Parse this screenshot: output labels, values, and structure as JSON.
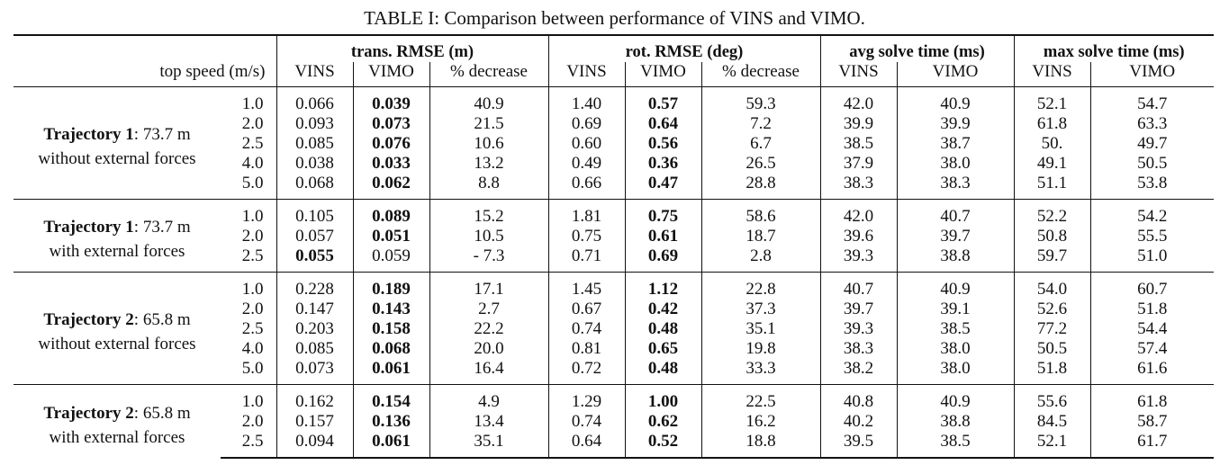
{
  "caption": "TABLE I: Comparison between performance of VINS and VIMO.",
  "header": {
    "top_speed": "top speed (m/s)",
    "groups": [
      "trans. RMSE (m)",
      "rot. RMSE (deg)",
      "avg solve time (ms)",
      "max solve time (ms)"
    ],
    "sub": {
      "vins": "VINS",
      "vimo": "VIMO",
      "pct": "% decrease"
    }
  },
  "sections": [
    {
      "traj_bold": "Trajectory 1",
      "traj_rest": ": 73.7 m",
      "condition": "without external forces",
      "rows": [
        [
          "1.0",
          "0.066",
          "0.039",
          "40.9",
          "1.40",
          "0.57",
          "59.3",
          "42.0",
          "40.9",
          "52.1",
          "54.7"
        ],
        [
          "2.0",
          "0.093",
          "0.073",
          "21.5",
          "0.69",
          "0.64",
          "7.2",
          "39.9",
          "39.9",
          "61.8",
          "63.3"
        ],
        [
          "2.5",
          "0.085",
          "0.076",
          "10.6",
          "0.60",
          "0.56",
          "6.7",
          "38.5",
          "38.7",
          "50.",
          "49.7"
        ],
        [
          "4.0",
          "0.038",
          "0.033",
          "13.2",
          "0.49",
          "0.36",
          "26.5",
          "37.9",
          "38.0",
          "49.1",
          "50.5"
        ],
        [
          "5.0",
          "0.068",
          "0.062",
          "8.8",
          "0.66",
          "0.47",
          "28.8",
          "38.3",
          "38.3",
          "51.1",
          "53.8"
        ]
      ],
      "bold": [
        [
          2,
          5
        ],
        [
          2,
          5
        ],
        [
          2,
          5
        ],
        [
          2,
          5
        ],
        [
          2,
          5
        ]
      ]
    },
    {
      "traj_bold": "Trajectory 1",
      "traj_rest": ": 73.7 m",
      "condition": "with external forces",
      "rows": [
        [
          "1.0",
          "0.105",
          "0.089",
          "15.2",
          "1.81",
          "0.75",
          "58.6",
          "42.0",
          "40.7",
          "52.2",
          "54.2"
        ],
        [
          "2.0",
          "0.057",
          "0.051",
          "10.5",
          "0.75",
          "0.61",
          "18.7",
          "39.6",
          "39.7",
          "50.8",
          "55.5"
        ],
        [
          "2.5",
          "0.055",
          "0.059",
          "- 7.3",
          "0.71",
          "0.69",
          "2.8",
          "39.3",
          "38.8",
          "59.7",
          "51.0"
        ]
      ],
      "bold": [
        [
          2,
          5
        ],
        [
          2,
          5
        ],
        [
          1,
          5
        ]
      ]
    },
    {
      "traj_bold": "Trajectory 2",
      "traj_rest": ": 65.8 m",
      "condition": "without external forces",
      "rows": [
        [
          "1.0",
          "0.228",
          "0.189",
          "17.1",
          "1.45",
          "1.12",
          "22.8",
          "40.7",
          "40.9",
          "54.0",
          "60.7"
        ],
        [
          "2.0",
          "0.147",
          "0.143",
          "2.7",
          "0.67",
          "0.42",
          "37.3",
          "39.7",
          "39.1",
          "52.6",
          "51.8"
        ],
        [
          "2.5",
          "0.203",
          "0.158",
          "22.2",
          "0.74",
          "0.48",
          "35.1",
          "39.3",
          "38.5",
          "77.2",
          "54.4"
        ],
        [
          "4.0",
          "0.085",
          "0.068",
          "20.0",
          "0.81",
          "0.65",
          "19.8",
          "38.3",
          "38.0",
          "50.5",
          "57.4"
        ],
        [
          "5.0",
          "0.073",
          "0.061",
          "16.4",
          "0.72",
          "0.48",
          "33.3",
          "38.2",
          "38.0",
          "51.8",
          "61.6"
        ]
      ],
      "bold": [
        [
          2,
          5
        ],
        [
          2,
          5
        ],
        [
          2,
          5
        ],
        [
          2,
          5
        ],
        [
          2,
          5
        ]
      ]
    },
    {
      "traj_bold": "Trajectory 2",
      "traj_rest": ": 65.8 m",
      "condition": "with external forces",
      "rows": [
        [
          "1.0",
          "0.162",
          "0.154",
          "4.9",
          "1.29",
          "1.00",
          "22.5",
          "40.8",
          "40.9",
          "55.6",
          "61.8"
        ],
        [
          "2.0",
          "0.157",
          "0.136",
          "13.4",
          "0.74",
          "0.62",
          "16.2",
          "40.2",
          "38.8",
          "84.5",
          "58.7"
        ],
        [
          "2.5",
          "0.094",
          "0.061",
          "35.1",
          "0.64",
          "0.52",
          "18.8",
          "39.5",
          "38.5",
          "52.1",
          "61.7"
        ]
      ],
      "bold": [
        [
          2,
          5
        ],
        [
          2,
          5
        ],
        [
          2,
          5
        ]
      ]
    }
  ]
}
